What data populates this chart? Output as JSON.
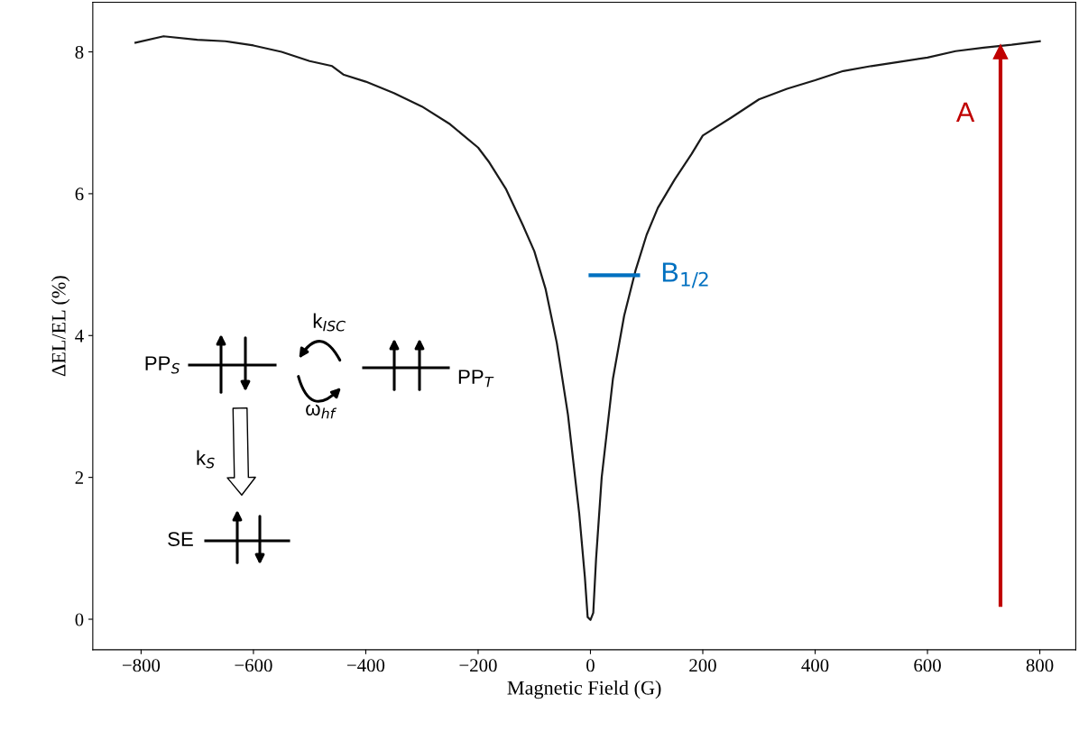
{
  "chart_data": {
    "type": "line",
    "xlabel": "Magnetic Field (G)",
    "ylabel": "ΔEL/EL (%)",
    "xlim": [
      -886,
      864
    ],
    "xticks": [
      {
        "value": -800,
        "label": "−800"
      },
      {
        "value": -600,
        "label": "−600"
      },
      {
        "value": -400,
        "label": "−400"
      },
      {
        "value": -200,
        "label": "−200"
      },
      0,
      200,
      400,
      600,
      800
    ],
    "ylim": [
      -0.43,
      8.7
    ],
    "yticks": [
      0,
      2,
      4,
      6,
      8
    ],
    "grid": false,
    "marker": "none",
    "line_style": "solid",
    "series": [
      {
        "color": "#1a1a1a",
        "x": [
          -810,
          -760,
          -700,
          -650,
          -600,
          -550,
          -500,
          -460,
          -440,
          -400,
          -350,
          -300,
          -250,
          -200,
          -180,
          -150,
          -120,
          -100,
          -80,
          -60,
          -40,
          -20,
          -10,
          -5,
          0,
          5,
          10,
          20,
          40,
          60,
          80,
          100,
          120,
          150,
          180,
          200,
          250,
          300,
          350,
          400,
          450,
          500,
          550,
          600,
          650,
          700,
          750,
          800
        ],
        "values": [
          8.13,
          8.22,
          8.17,
          8.15,
          8.09,
          8.0,
          7.87,
          7.8,
          7.68,
          7.58,
          7.42,
          7.23,
          6.98,
          6.65,
          6.44,
          6.06,
          5.55,
          5.19,
          4.66,
          3.9,
          2.88,
          1.49,
          0.6,
          0.03,
          -0.01,
          0.09,
          0.85,
          2.0,
          3.39,
          4.28,
          4.91,
          5.42,
          5.8,
          6.2,
          6.56,
          6.82,
          7.07,
          7.33,
          7.48,
          7.6,
          7.73,
          7.8,
          7.86,
          7.92,
          8.01,
          8.06,
          8.1,
          8.15
        ]
      },
      {
        "name": "B$_{1/2}$",
        "color": "#0070c0",
        "x": [
          0,
          85
        ],
        "values": [
          4.85,
          4.85
        ]
      },
      {
        "name": "A",
        "color": "#c00000",
        "x": [
          730,
          730
        ],
        "values": [
          0.2,
          8.0
        ],
        "marker": "triangle"
      }
    ],
    "annotations": [
      "PP$_{S}$",
      "PP$_{T}$",
      "k$_{ISC}$",
      "ω$_{hf}$",
      "k$_{S}$",
      "SE"
    ]
  }
}
